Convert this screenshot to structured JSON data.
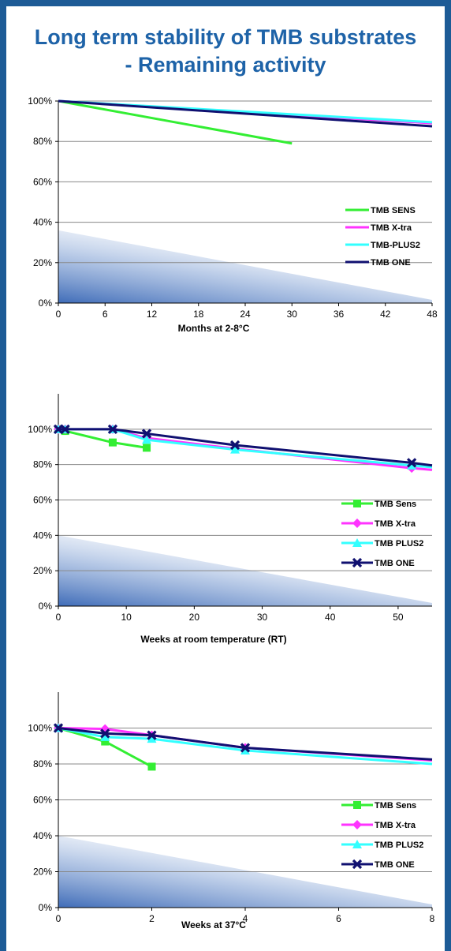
{
  "page": {
    "title_line1": "Long term stability of TMB substrates",
    "title_line2": "- Remaining activity"
  },
  "colors": {
    "frame": "#1d5b96",
    "title": "#1e63a8",
    "sens": "#33ee33",
    "xtra": "#ff33ff",
    "plus2": "#33ffff",
    "one": "#101070"
  },
  "chart_data": [
    {
      "type": "line",
      "xlabel": "Months at 2-8°C",
      "ylabel": "",
      "xlim": [
        0,
        48
      ],
      "ylim": [
        0,
        100
      ],
      "x_ticks": [
        0,
        6,
        12,
        18,
        24,
        30,
        36,
        42,
        48
      ],
      "y_ticks": [
        "0%",
        "20%",
        "40%",
        "60%",
        "80%",
        "100%"
      ],
      "grid": "horizontal",
      "legend_position": "bottom-right",
      "markers": false,
      "series": [
        {
          "name": "TMB SENS",
          "color": "#33ee33",
          "marker": "none",
          "x": [
            0,
            30
          ],
          "y": [
            100,
            79
          ]
        },
        {
          "name": "TMB X-tra",
          "color": "#ff33ff",
          "marker": "none",
          "x": [
            0,
            48
          ],
          "y": [
            100,
            89
          ]
        },
        {
          "name": "TMB-PLUS2",
          "color": "#33ffff",
          "marker": "none",
          "x": [
            0,
            48
          ],
          "y": [
            100,
            89.5
          ]
        },
        {
          "name": "TMB ONE",
          "color": "#101070",
          "marker": "none",
          "x": [
            0,
            48
          ],
          "y": [
            100,
            87.5
          ]
        }
      ]
    },
    {
      "type": "line",
      "xlabel": "Weeks at room temperature (RT)",
      "ylabel": "",
      "xlim": [
        0,
        55
      ],
      "ylim": [
        0,
        120
      ],
      "x_ticks": [
        0,
        10,
        20,
        30,
        40,
        50
      ],
      "y_ticks": [
        "0%",
        "20%",
        "40%",
        "60%",
        "80%",
        "100%"
      ],
      "grid": "horizontal",
      "legend_position": "bottom-right",
      "markers": true,
      "series": [
        {
          "name": "TMB Sens",
          "color": "#33ee33",
          "marker": "square",
          "x": [
            0,
            1,
            8,
            13
          ],
          "y": [
            100,
            99,
            92.5,
            89.5
          ]
        },
        {
          "name": "TMB X-tra",
          "color": "#ff33ff",
          "marker": "diamond",
          "x": [
            0,
            1,
            8,
            13,
            26,
            52,
            55
          ],
          "y": [
            100,
            100,
            100,
            95,
            89,
            78,
            77
          ]
        },
        {
          "name": "TMB PLUS2",
          "color": "#33ffff",
          "marker": "triangle",
          "x": [
            0,
            1,
            8,
            13,
            26,
            52,
            55
          ],
          "y": [
            100,
            100,
            100,
            94,
            88.5,
            79.5,
            78.5
          ]
        },
        {
          "name": "TMB ONE",
          "color": "#101070",
          "marker": "cross",
          "x": [
            0,
            1,
            8,
            13,
            26,
            52,
            55
          ],
          "y": [
            100,
            100,
            100,
            97.5,
            91,
            81,
            79.5
          ]
        }
      ]
    },
    {
      "type": "line",
      "xlabel": "Weeks at 37°C",
      "ylabel": "",
      "xlim": [
        0,
        8
      ],
      "ylim": [
        0,
        120
      ],
      "x_ticks": [
        0,
        2,
        4,
        6,
        8
      ],
      "y_ticks": [
        "0%",
        "20%",
        "40%",
        "60%",
        "80%",
        "100%"
      ],
      "grid": "horizontal",
      "legend_position": "bottom-right",
      "markers": true,
      "series": [
        {
          "name": "TMB Sens",
          "color": "#33ee33",
          "marker": "square",
          "x": [
            0,
            1,
            2
          ],
          "y": [
            100,
            92.5,
            78.5
          ]
        },
        {
          "name": "TMB X-tra",
          "color": "#ff33ff",
          "marker": "diamond",
          "x": [
            0,
            1,
            2,
            4,
            8
          ],
          "y": [
            100,
            99.5,
            96,
            89,
            82
          ]
        },
        {
          "name": "TMB PLUS2",
          "color": "#33ffff",
          "marker": "triangle",
          "x": [
            0,
            1,
            2,
            4,
            8
          ],
          "y": [
            100,
            95,
            94,
            87.5,
            80
          ]
        },
        {
          "name": "TMB ONE",
          "color": "#101070",
          "marker": "cross",
          "x": [
            0,
            1,
            2,
            4,
            8
          ],
          "y": [
            100,
            97,
            96,
            89,
            82.5
          ]
        }
      ]
    }
  ]
}
